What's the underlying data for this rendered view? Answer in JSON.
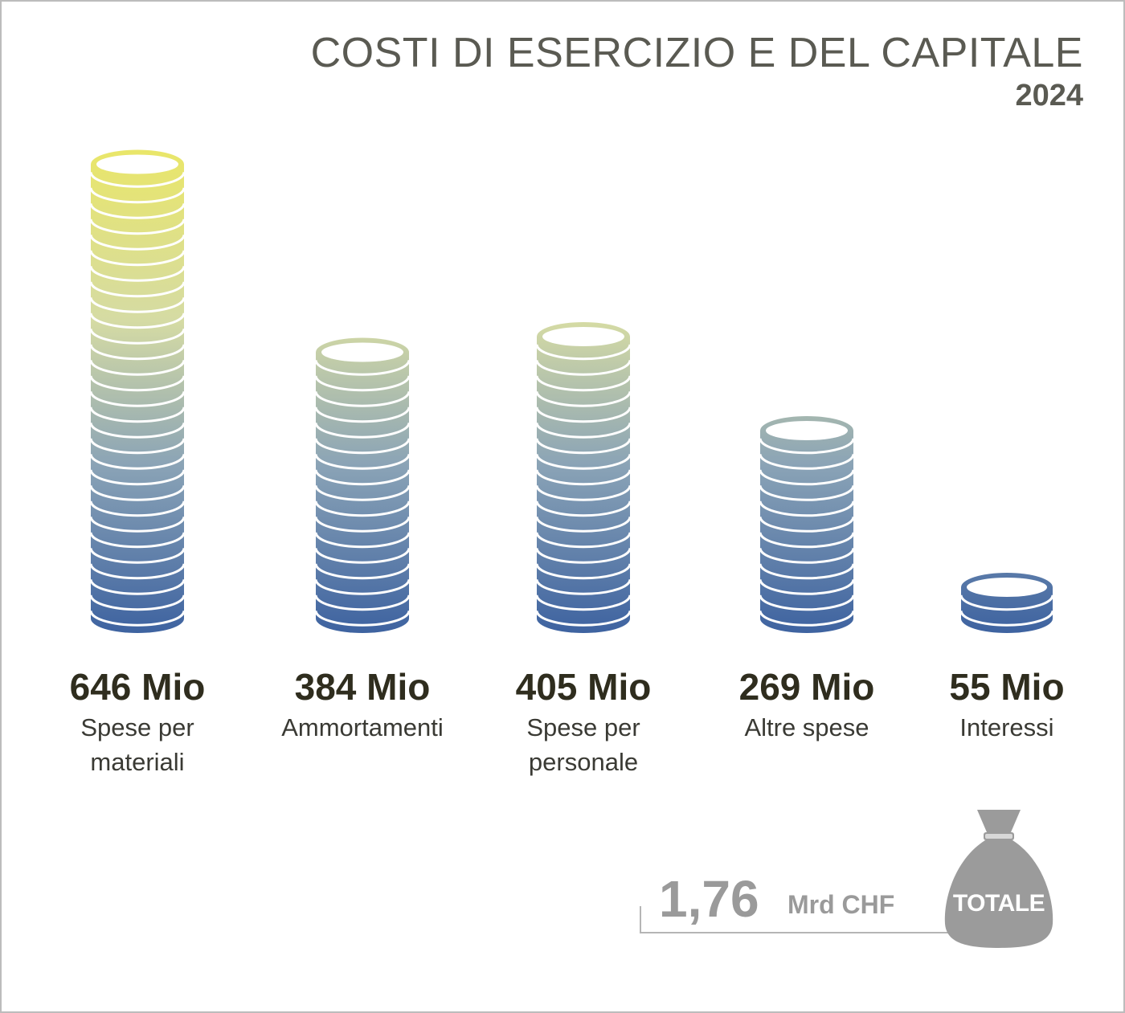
{
  "title": "COSTI DI ESERCIZIO E DEL CAPITALE",
  "year": "2024",
  "colors": {
    "coin_top": "#e9e66a",
    "coin_bottom": "#3d62a0",
    "text_dark": "#2f2d1e",
    "total_gray": "#9a9a9a"
  },
  "chart_data": {
    "type": "bar",
    "title": "COSTI DI ESERCIZIO E DEL CAPITALE",
    "subtitle": "2024",
    "unit": "Mio",
    "categories": [
      "Spese per materiali",
      "Ammortamenti",
      "Spese per personale",
      "Altre spese",
      "Interessi"
    ],
    "values": [
      646,
      384,
      405,
      269,
      55
    ],
    "value_labels": [
      "646 Mio",
      "384 Mio",
      "405 Mio",
      "269 Mio",
      "55 Mio"
    ],
    "category_labels": [
      [
        "Spese per",
        "materiali"
      ],
      [
        "Ammortamenti"
      ],
      [
        "Spese per",
        "personale"
      ],
      [
        "Altre spese"
      ],
      [
        "Interessi"
      ]
    ]
  },
  "total": {
    "value": "1,76",
    "unit": "Mrd CHF",
    "badge": "TOTALE",
    "icon": "money-bag-icon"
  }
}
